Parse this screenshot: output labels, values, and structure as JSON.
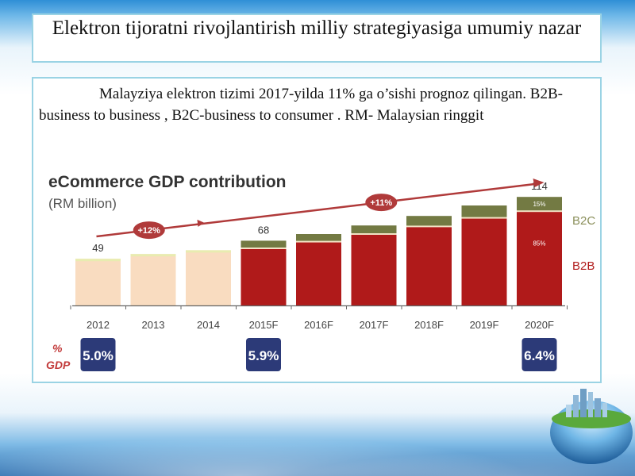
{
  "slide": {
    "title": "Elektron tijoratni rivojlantirish milliy strategiyasiga umumiy nazar",
    "description": "Malayziya elektron tizimi 2017-yilda 11% ga o’sishi prognoz qilingan. B2B-business to business , B2C-business to consumer . RM- Malaysian ringgit"
  },
  "chart_data": {
    "type": "bar",
    "title": "eCommerce GDP contribution",
    "subtitle": "(RM billion)",
    "categories": [
      "2012",
      "2013",
      "2014",
      "2015F",
      "2016F",
      "2017F",
      "2018F",
      "2019F",
      "2020F"
    ],
    "series": [
      {
        "name": "B2B",
        "values": [
          0,
          0,
          0,
          60,
          67,
          75,
          83,
          92,
          99
        ]
      },
      {
        "name": "B2C",
        "values": [
          0,
          0,
          0,
          8,
          8,
          9,
          11,
          13,
          15
        ]
      },
      {
        "name": "",
        "values": [
          49,
          54,
          58,
          0,
          0,
          0,
          0,
          0,
          0
        ]
      }
    ],
    "totals_labels": [
      {
        "category": "2012",
        "text": "49"
      },
      {
        "category": "2015F",
        "text": "68"
      },
      {
        "category": "2020F",
        "text": "114"
      }
    ],
    "segment_labels": {
      "b2c_2020": "15%",
      "b2b_2020": "85%"
    },
    "growth_arrows": [
      {
        "label": "+12%"
      },
      {
        "label": "+11%"
      }
    ],
    "gdp_share": {
      "label_line1": "%",
      "label_line2": "GDP",
      "badges": [
        {
          "category": "2012",
          "text": "5.0%"
        },
        {
          "category": "2015F",
          "text": "5.9%"
        },
        {
          "category": "2020F",
          "text": "6.4%"
        }
      ]
    },
    "colors": {
      "historic": "#f9dcc0",
      "historic_top": "#e8ecb0",
      "b2b": "#b01a1a",
      "b2c": "#737a43",
      "arrow": "#b03a3a",
      "badge": "#2c3a78",
      "gdp_label": "#c23a3a"
    },
    "ylim": [
      0,
      125
    ],
    "legend": "right"
  }
}
